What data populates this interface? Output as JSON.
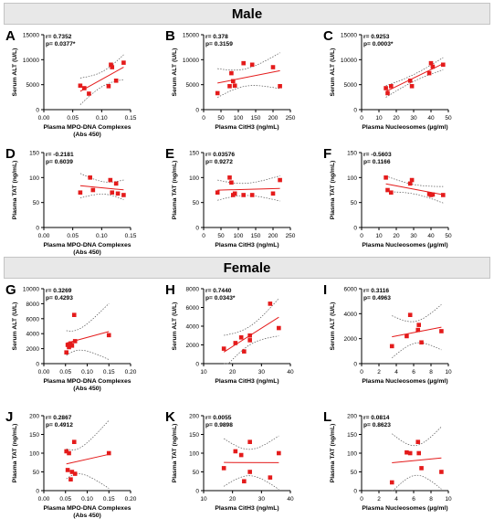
{
  "sections": [
    {
      "title": "Male"
    },
    {
      "title": "Female"
    }
  ],
  "colors": {
    "point": "#e41b1b",
    "fit": "#e41b1b",
    "band": "#555555",
    "axis": "#000000"
  },
  "chart_data": [
    {
      "id": "A",
      "type": "scatter",
      "xlabel_lines": [
        "Plasma MPO-DNA Complexes",
        "(Abs 450)"
      ],
      "ylabel": "Serum ALT (U/L)",
      "xlim": [
        0,
        0.15
      ],
      "ylim": [
        0,
        15000
      ],
      "xticks": [
        0,
        0.05,
        0.1,
        0.15
      ],
      "xtick_labels": [
        "0.00",
        "0.05",
        "0.10",
        "0.15"
      ],
      "yticks": [
        0,
        5000,
        10000,
        15000
      ],
      "ytick_labels": [
        "0",
        "5000",
        "10000",
        "15000"
      ],
      "stat_r": "r= 0.7352",
      "stat_p": "p= 0.0377*",
      "x": [
        0.063,
        0.07,
        0.078,
        0.112,
        0.116,
        0.118,
        0.125,
        0.138
      ],
      "y": [
        4800,
        4300,
        3200,
        4700,
        9000,
        8500,
        5800,
        9400
      ]
    },
    {
      "id": "B",
      "type": "scatter",
      "xlabel_lines": [
        "Plasma CitH3 (ng/mL)"
      ],
      "ylabel": "Serum ALT (U/L)",
      "xlim": [
        0,
        250
      ],
      "ylim": [
        0,
        15000
      ],
      "xticks": [
        0,
        50,
        100,
        150,
        200,
        250
      ],
      "xtick_labels": [
        "0",
        "50",
        "100",
        "150",
        "200",
        "250"
      ],
      "yticks": [
        0,
        5000,
        10000,
        15000
      ],
      "ytick_labels": [
        "0",
        "5000",
        "10000",
        "15000"
      ],
      "stat_r": "r= 0.378",
      "stat_p": "p= 0.3159",
      "x": [
        40,
        75,
        80,
        85,
        90,
        115,
        140,
        200,
        220
      ],
      "y": [
        3300,
        4700,
        7300,
        5700,
        4800,
        9300,
        9000,
        8500,
        4700
      ]
    },
    {
      "id": "C",
      "type": "scatter",
      "xlabel_lines": [
        "Plasma Nucleosomes (µg/ml)"
      ],
      "ylabel": "Serum ALT (U/L)",
      "xlim": [
        0,
        50
      ],
      "ylim": [
        0,
        15000
      ],
      "xticks": [
        0,
        10,
        20,
        30,
        40,
        50
      ],
      "xtick_labels": [
        "0",
        "10",
        "20",
        "30",
        "40",
        "50"
      ],
      "yticks": [
        0,
        5000,
        10000,
        15000
      ],
      "ytick_labels": [
        "0",
        "5000",
        "10000",
        "15000"
      ],
      "stat_r": "r= 0.9253",
      "stat_p": "p= 0.0003*",
      "x": [
        14,
        15,
        17,
        28,
        29,
        39,
        40,
        41,
        47
      ],
      "y": [
        4300,
        3300,
        4700,
        5800,
        4700,
        7300,
        9300,
        8600,
        9000
      ]
    },
    {
      "id": "D",
      "type": "scatter",
      "xlabel_lines": [
        "Plasma MPO-DNA Complexes",
        "(Abs 450)"
      ],
      "ylabel": "Plasma TAT (ng/mL)",
      "xlim": [
        0,
        0.15
      ],
      "ylim": [
        0,
        150
      ],
      "xticks": [
        0,
        0.05,
        0.1,
        0.15
      ],
      "xtick_labels": [
        "0.00",
        "0.05",
        "0.10",
        "0.15"
      ],
      "yticks": [
        0,
        50,
        100,
        150
      ],
      "ytick_labels": [
        "0",
        "50",
        "100",
        "150"
      ],
      "stat_r": "r= -0.2181",
      "stat_p": "p= 0.6039",
      "x": [
        0.063,
        0.08,
        0.085,
        0.115,
        0.118,
        0.125,
        0.128,
        0.138
      ],
      "y": [
        70,
        100,
        75,
        95,
        70,
        88,
        68,
        65
      ]
    },
    {
      "id": "E",
      "type": "scatter",
      "xlabel_lines": [
        "Plasma CitH3 (ng/mL)"
      ],
      "ylabel": "Plasma TAT (ng/mL)",
      "xlim": [
        0,
        250
      ],
      "ylim": [
        0,
        150
      ],
      "xticks": [
        0,
        50,
        100,
        150,
        200,
        250
      ],
      "xtick_labels": [
        "0",
        "50",
        "100",
        "150",
        "200",
        "250"
      ],
      "yticks": [
        0,
        50,
        100,
        150
      ],
      "ytick_labels": [
        "0",
        "50",
        "100",
        "150"
      ],
      "stat_r": "r= 0.03576",
      "stat_p": "p= 0.9272",
      "x": [
        40,
        75,
        80,
        85,
        90,
        115,
        140,
        200,
        220
      ],
      "y": [
        70,
        100,
        90,
        65,
        68,
        65,
        65,
        68,
        95
      ]
    },
    {
      "id": "F",
      "type": "scatter",
      "xlabel_lines": [
        "Plasma Nucleosomes (µg/ml)"
      ],
      "ylabel": "Plasma TAT (ng/mL)",
      "xlim": [
        0,
        50
      ],
      "ylim": [
        0,
        150
      ],
      "xticks": [
        0,
        10,
        20,
        30,
        40,
        50
      ],
      "xtick_labels": [
        "0",
        "10",
        "20",
        "30",
        "40",
        "50"
      ],
      "yticks": [
        0,
        50,
        100,
        150
      ],
      "ytick_labels": [
        "0",
        "50",
        "100",
        "150"
      ],
      "stat_r": "r= -0.5603",
      "stat_p": "p= 0.1166",
      "x": [
        14,
        15,
        17,
        28,
        29,
        39,
        40,
        41,
        47
      ],
      "y": [
        100,
        75,
        70,
        88,
        95,
        67,
        65,
        66,
        65
      ]
    },
    {
      "id": "G",
      "type": "scatter",
      "xlabel_lines": [
        "Plasma MPO-DNA Complexes",
        "(Abs 450)"
      ],
      "ylabel": "Serum ALT (U/L)",
      "xlim": [
        0,
        0.2
      ],
      "ylim": [
        0,
        10000
      ],
      "xticks": [
        0,
        0.05,
        0.1,
        0.15,
        0.2
      ],
      "xtick_labels": [
        "0.00",
        "0.05",
        "0.10",
        "0.15",
        "0.20"
      ],
      "yticks": [
        0,
        2000,
        4000,
        6000,
        8000,
        10000
      ],
      "ytick_labels": [
        "0",
        "2000",
        "4000",
        "6000",
        "8000",
        "10000"
      ],
      "stat_r": "r= 0.3269",
      "stat_p": "p= 0.4293",
      "x": [
        0.052,
        0.055,
        0.058,
        0.062,
        0.065,
        0.07,
        0.072,
        0.15
      ],
      "y": [
        1500,
        2500,
        2200,
        2700,
        2400,
        6500,
        3000,
        3800
      ]
    },
    {
      "id": "H",
      "type": "scatter",
      "xlabel_lines": [
        "Plasma CitH3 (ng/mL)"
      ],
      "ylabel": "Serum ALT (U/L)",
      "xlim": [
        10,
        40
      ],
      "ylim": [
        0,
        8000
      ],
      "xticks": [
        10,
        20,
        30,
        40
      ],
      "xtick_labels": [
        "10",
        "20",
        "30",
        "40"
      ],
      "yticks": [
        0,
        2000,
        4000,
        6000,
        8000
      ],
      "ytick_labels": [
        "0",
        "2000",
        "4000",
        "6000",
        "8000"
      ],
      "stat_r": "r= 0.7440",
      "stat_p": "p= 0.0343*",
      "x": [
        17,
        21,
        23,
        24,
        26,
        26,
        33,
        36
      ],
      "y": [
        1600,
        2200,
        2800,
        1300,
        2500,
        3000,
        6400,
        3800
      ]
    },
    {
      "id": "I",
      "type": "scatter",
      "xlabel_lines": [
        "Plasma Nucleosomes (µg/ml)"
      ],
      "ylabel": "Serum ALT (U/L)",
      "xlim": [
        0,
        10
      ],
      "ylim": [
        0,
        6000
      ],
      "xticks": [
        0,
        2,
        4,
        6,
        8,
        10
      ],
      "xtick_labels": [
        "0",
        "2",
        "4",
        "6",
        "8",
        "10"
      ],
      "yticks": [
        0,
        2000,
        4000,
        6000
      ],
      "ytick_labels": [
        "0",
        "2000",
        "4000",
        "6000"
      ],
      "stat_r": "r= 0.3116",
      "stat_p": "p= 0.4963",
      "x": [
        3.5,
        5.2,
        5.6,
        6.5,
        6.6,
        6.9,
        9.2
      ],
      "y": [
        1400,
        2200,
        3900,
        2700,
        3100,
        1700,
        2600
      ]
    },
    {
      "id": "J",
      "type": "scatter",
      "xlabel_lines": [
        "Plasma MPO-DNA Complexes",
        "(Abs 450)"
      ],
      "ylabel": "Plasma TAT (ng/mL)",
      "xlim": [
        0,
        0.2
      ],
      "ylim": [
        0,
        200
      ],
      "xticks": [
        0,
        0.05,
        0.1,
        0.15,
        0.2
      ],
      "xtick_labels": [
        "0.00",
        "0.05",
        "0.10",
        "0.15",
        "0.20"
      ],
      "yticks": [
        0,
        50,
        100,
        150,
        200
      ],
      "ytick_labels": [
        "0",
        "50",
        "100",
        "150",
        "200"
      ],
      "stat_r": "r= 0.2867",
      "stat_p": "p= 0.4912",
      "x": [
        0.052,
        0.055,
        0.058,
        0.062,
        0.065,
        0.07,
        0.072,
        0.15
      ],
      "y": [
        105,
        55,
        100,
        30,
        50,
        130,
        45,
        100
      ]
    },
    {
      "id": "K",
      "type": "scatter",
      "xlabel_lines": [
        "Plasma CitH3 (ng/mL)"
      ],
      "ylabel": "Plasma TAT (ng/mL)",
      "xlim": [
        10,
        40
      ],
      "ylim": [
        0,
        200
      ],
      "xticks": [
        10,
        20,
        30,
        40
      ],
      "xtick_labels": [
        "10",
        "20",
        "30",
        "40"
      ],
      "yticks": [
        0,
        50,
        100,
        150,
        200
      ],
      "ytick_labels": [
        "0",
        "50",
        "100",
        "150",
        "200"
      ],
      "stat_r": "r= 0.0055",
      "stat_p": "p= 0.9898",
      "x": [
        17,
        21,
        23,
        24,
        26,
        26,
        33,
        36
      ],
      "y": [
        60,
        105,
        95,
        25,
        130,
        50,
        35,
        100
      ]
    },
    {
      "id": "L",
      "type": "scatter",
      "xlabel_lines": [
        "Plasma Nucleosomes (µg/ml)"
      ],
      "ylabel": "Plasma TAT (ng/mL)",
      "xlim": [
        0,
        10
      ],
      "ylim": [
        0,
        200
      ],
      "xticks": [
        0,
        2,
        4,
        6,
        8,
        10
      ],
      "xtick_labels": [
        "0",
        "2",
        "4",
        "6",
        "8",
        "10"
      ],
      "yticks": [
        0,
        50,
        100,
        150,
        200
      ],
      "ytick_labels": [
        "0",
        "50",
        "100",
        "150",
        "200"
      ],
      "stat_r": "r= 0.0814",
      "stat_p": "p= 0.8623",
      "x": [
        3.5,
        5.2,
        5.6,
        6.5,
        6.6,
        6.9,
        9.2
      ],
      "y": [
        22,
        102,
        100,
        130,
        100,
        60,
        50
      ]
    }
  ]
}
